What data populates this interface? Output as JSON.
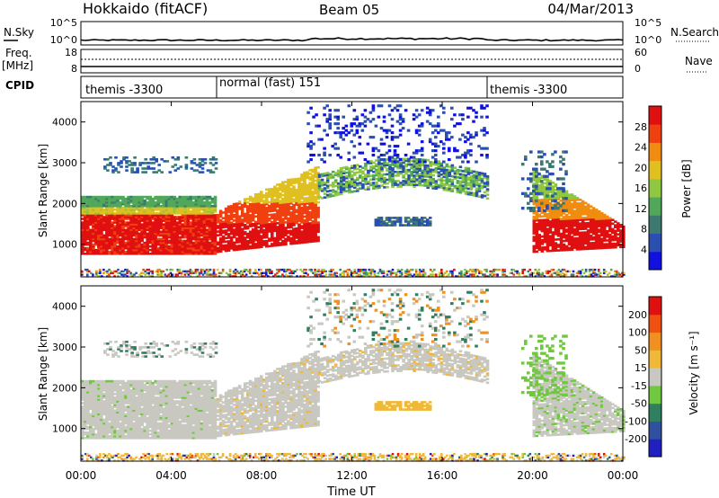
{
  "header": {
    "site": "Hokkaido (fitACF)",
    "beam": "Beam 05",
    "date": "04/Mar/2013"
  },
  "panels": {
    "nsky": {
      "left_label": "N.Sky",
      "right_label": "N.Search",
      "left_ticks": [
        "10^5",
        "10^0"
      ],
      "right_ticks": [
        "10^5",
        "10^0"
      ]
    },
    "freq": {
      "left_label_1": "Freq.",
      "left_label_2": "[MHz]",
      "right_label": "Nave",
      "left_ticks": [
        "18",
        "8"
      ],
      "right_ticks": [
        "60",
        "0"
      ]
    },
    "cpid": {
      "label": "CPID",
      "segments": [
        "themis -3300",
        "normal (fast) 151",
        "themis -3300"
      ]
    }
  },
  "colors": {
    "power": [
      "#1010e0",
      "#2a4fb0",
      "#3c7a70",
      "#52a85a",
      "#8fc840",
      "#e0c020",
      "#f08c10",
      "#f04010",
      "#e01010"
    ],
    "velocity": [
      "#e01010",
      "#f05010",
      "#f09020",
      "#f0b838",
      "#c8c8c0",
      "#70c840",
      "#308060",
      "#3050a0",
      "#2020c0"
    ]
  },
  "chart_data": [
    {
      "type": "heatmap",
      "name": "power",
      "ylabel": "Slant Range [km]",
      "ylim": [
        200,
        4500
      ],
      "yticks": [
        1000,
        2000,
        3000,
        4000
      ],
      "xlim": [
        0,
        24
      ],
      "colorbar": {
        "label": "Power [dB]",
        "ticks": [
          "4",
          "8",
          "12",
          "16",
          "20",
          "24",
          "28"
        ]
      }
    },
    {
      "type": "heatmap",
      "name": "velocity",
      "ylabel": "Slant Range [km]",
      "ylim": [
        200,
        4500
      ],
      "yticks": [
        1000,
        2000,
        3000,
        4000
      ],
      "xlim": [
        0,
        24
      ],
      "xlabel": "Time UT",
      "xticks": [
        "00:00",
        "04:00",
        "08:00",
        "12:00",
        "16:00",
        "20:00",
        "00:00"
      ],
      "colorbar": {
        "label": "Velocity [m s⁻¹]",
        "ticks": [
          "200",
          "100",
          "50",
          "15",
          "-15",
          "-50",
          "-100",
          "-200"
        ]
      }
    }
  ]
}
